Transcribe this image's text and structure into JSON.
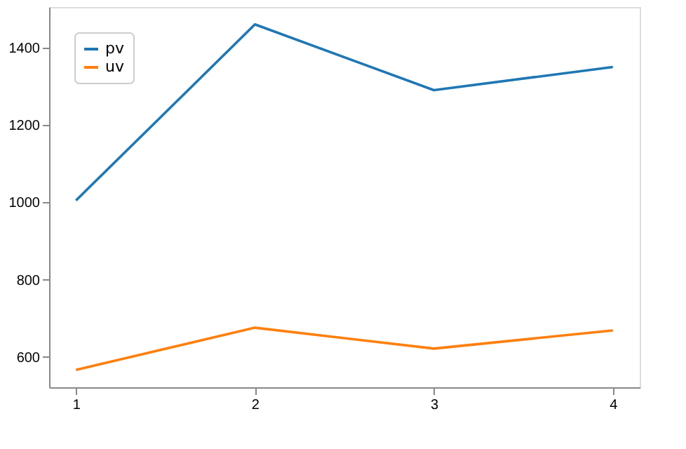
{
  "chart_data": {
    "type": "line",
    "x": [
      1,
      2,
      3,
      4
    ],
    "series": [
      {
        "name": "pv",
        "color": "#1f77b4",
        "values": [
          1005,
          1460,
          1290,
          1350
        ]
      },
      {
        "name": "uv",
        "color": "#ff7f0e",
        "values": [
          567,
          676,
          622,
          669
        ]
      }
    ],
    "xlim": [
      0.85,
      4.15
    ],
    "xticks": [
      1,
      2,
      3,
      4
    ],
    "ylim": [
      522,
      1505
    ],
    "yticks": [
      600,
      800,
      1000,
      1200,
      1400
    ],
    "legend": "top left",
    "grid": false,
    "line_style": "solid",
    "marker": "none"
  }
}
